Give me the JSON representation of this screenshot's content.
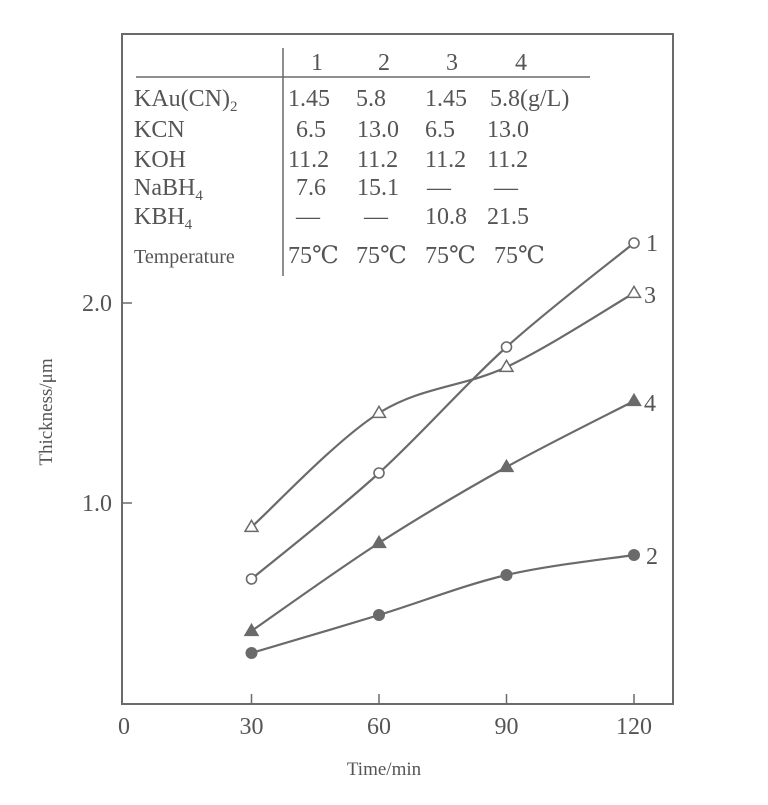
{
  "chart_data": {
    "type": "line",
    "title": "",
    "xlabel": "Time/min",
    "ylabel": "Thickness/μm",
    "xlim": [
      0,
      130
    ],
    "ylim": [
      0,
      2.5
    ],
    "x_ticks": [
      0,
      30,
      60,
      90,
      120
    ],
    "x_tick_labels": [
      "0",
      "30",
      "60",
      "90",
      "120"
    ],
    "y_ticks": [
      1.0,
      2.0
    ],
    "y_tick_labels": [
      "1.0",
      "2.0"
    ],
    "grid": false,
    "x": [
      30,
      60,
      90,
      120
    ],
    "series": [
      {
        "name": "1",
        "marker": "open-circle",
        "values": [
          0.62,
          1.15,
          1.78,
          2.3
        ]
      },
      {
        "name": "2",
        "marker": "filled-circle",
        "values": [
          0.25,
          0.44,
          0.64,
          0.74
        ]
      },
      {
        "name": "3",
        "marker": "open-triangle",
        "values": [
          0.88,
          1.45,
          1.68,
          2.05
        ]
      },
      {
        "name": "4",
        "marker": "filled-triangle",
        "values": [
          0.36,
          0.8,
          1.18,
          1.51
        ]
      }
    ],
    "legend_position": "inline-at-line-ends",
    "inset_table": {
      "columns": [
        "1",
        "2",
        "3",
        "4"
      ],
      "rows": [
        {
          "label": "KAu(CN)",
          "label_sub": "2",
          "values": [
            "1.45",
            "5.8",
            "1.45",
            "5.8(g/L)"
          ]
        },
        {
          "label": "KCN",
          "label_sub": "",
          "values": [
            "6.5",
            "13.0",
            "6.5",
            "13.0"
          ]
        },
        {
          "label": "KOH",
          "label_sub": "",
          "values": [
            "11.2",
            "11.2",
            "11.2",
            "11.2"
          ]
        },
        {
          "label": "NaBH",
          "label_sub": "4",
          "values": [
            "7.6",
            "15.1",
            "—",
            "—"
          ]
        },
        {
          "label": "KBH",
          "label_sub": "4",
          "values": [
            "—",
            "—",
            "10.8",
            "21.5"
          ]
        },
        {
          "label": "Temperature",
          "label_sub": "",
          "values": [
            "75℃",
            "75℃",
            "75℃",
            "75℃"
          ]
        }
      ]
    }
  },
  "colors": {
    "ink": "#6a6a6a",
    "text": "#555555",
    "background": "#ffffff"
  }
}
